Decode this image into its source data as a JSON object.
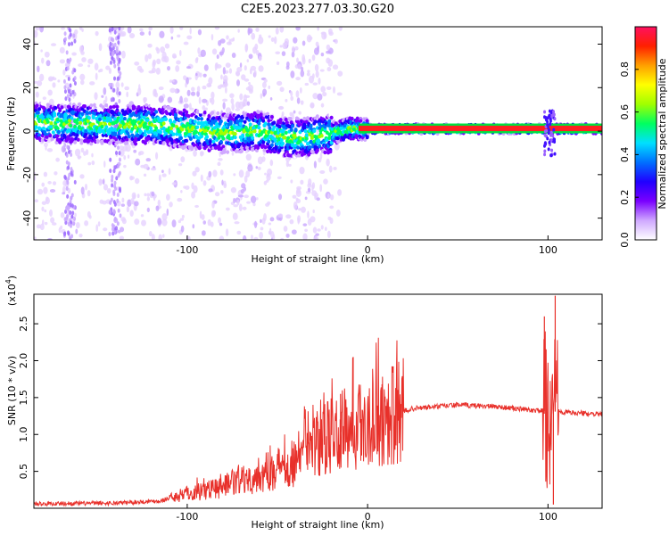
{
  "title": "C2E5.2023.277.03.30.G20",
  "chart_data": [
    {
      "type": "heatmap",
      "xlabel": "Height of straight line (km)",
      "ylabel": "Frequency (Hz)",
      "xlim": [
        -185,
        130
      ],
      "ylim": [
        -50,
        48
      ],
      "xticks": [
        -100,
        0,
        100
      ],
      "yticks": [
        -40,
        -20,
        0,
        20,
        40
      ],
      "colorbar": {
        "label": "Normalized spectral amplitude",
        "range": [
          0,
          1
        ],
        "ticks": [
          0.0,
          0.2,
          0.4,
          0.6,
          0.8
        ],
        "colors": [
          "#ffffff",
          "#cfa8ff",
          "#7a00ff",
          "#2000ff",
          "#0070ff",
          "#00e0ff",
          "#00ff60",
          "#a0ff00",
          "#ffff00",
          "#ffa000",
          "#ff2000",
          "#ff1060"
        ]
      },
      "ridge": [
        {
          "x": -185,
          "y": 4
        },
        {
          "x": -150,
          "y": 3
        },
        {
          "x": -120,
          "y": 3
        },
        {
          "x": -100,
          "y": 1
        },
        {
          "x": -80,
          "y": -1
        },
        {
          "x": -60,
          "y": 0
        },
        {
          "x": -45,
          "y": -3
        },
        {
          "x": -35,
          "y": -3
        },
        {
          "x": -20,
          "y": -1
        },
        {
          "x": -10,
          "y": 1
        },
        {
          "x": 0,
          "y": 1
        },
        {
          "x": 20,
          "y": 1
        },
        {
          "x": 60,
          "y": 1
        },
        {
          "x": 100,
          "y": 1
        },
        {
          "x": 130,
          "y": 1
        }
      ]
    },
    {
      "type": "line",
      "xlabel": "Height of straight line (km)",
      "ylabel": "SNR (10 * v/v)",
      "yscale_label": "(x10",
      "yscale_exp": "4",
      "yscale_close": ")",
      "xlim": [
        -185,
        130
      ],
      "ylim": [
        0,
        2.9
      ],
      "xticks": [
        -100,
        0,
        100
      ],
      "yticks": [
        0.5,
        1.0,
        1.5,
        2.0,
        2.5
      ],
      "color": "#e8302a",
      "envelope": [
        {
          "x": -185,
          "y": 0.06
        },
        {
          "x": -140,
          "y": 0.07
        },
        {
          "x": -115,
          "y": 0.1
        },
        {
          "x": -100,
          "y": 0.2
        },
        {
          "x": -80,
          "y": 0.3
        },
        {
          "x": -60,
          "y": 0.45
        },
        {
          "x": -40,
          "y": 0.65
        },
        {
          "x": -25,
          "y": 0.9
        },
        {
          "x": -10,
          "y": 1.1
        },
        {
          "x": 10,
          "y": 1.25
        },
        {
          "x": 25,
          "y": 1.35
        },
        {
          "x": 50,
          "y": 1.4
        },
        {
          "x": 70,
          "y": 1.38
        },
        {
          "x": 90,
          "y": 1.33
        },
        {
          "x": 110,
          "y": 1.3
        },
        {
          "x": 130,
          "y": 1.27
        }
      ],
      "spikes": [
        {
          "x": -8,
          "y": 2.05
        },
        {
          "x": 8,
          "y": 1.68
        },
        {
          "x": -15,
          "y": 1.55
        },
        {
          "x": -31,
          "y": 0.98
        },
        {
          "x": 98,
          "y": 2.6
        },
        {
          "x": 104,
          "y": 2.88
        },
        {
          "x": 103,
          "y": 0.05
        }
      ]
    }
  ]
}
